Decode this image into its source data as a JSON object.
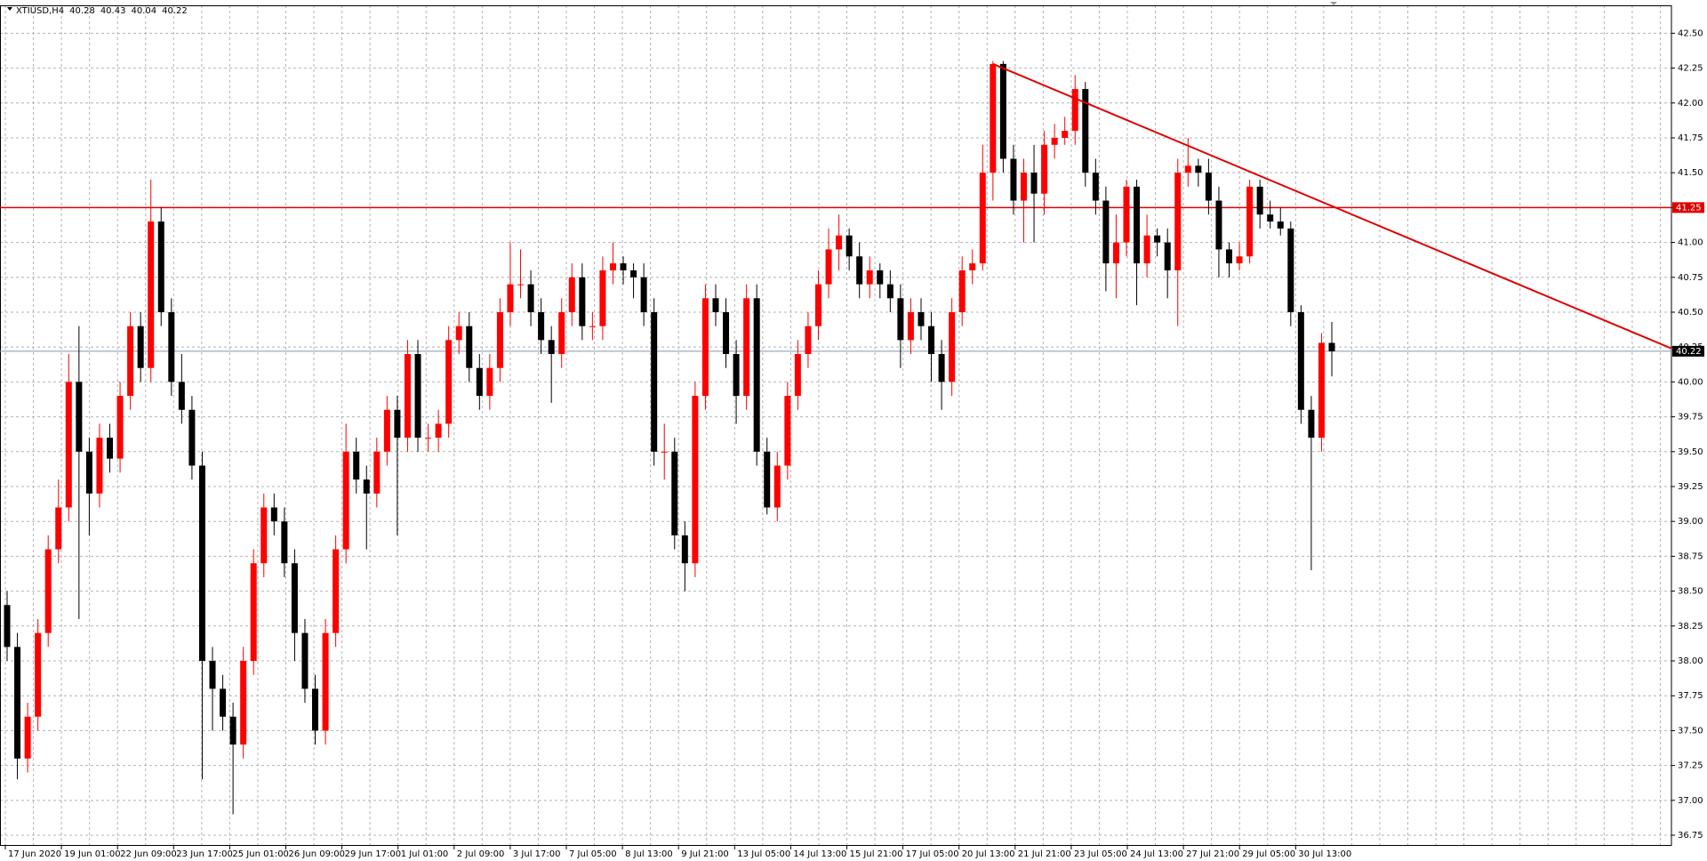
{
  "chart_data": {
    "type": "candlestick",
    "symbol": "XTIUSD,H4",
    "header_ohlc": [
      40.28,
      40.43,
      40.04,
      40.22
    ],
    "up_color": "#ff0000",
    "down_color": "#000000",
    "ylim": [
      36.68,
      42.7
    ],
    "yticks": [
      {
        "value": 36.75,
        "label": "36.75"
      },
      {
        "value": 37,
        "label": "37.00"
      },
      {
        "value": 37.25,
        "label": "37.25"
      },
      {
        "value": 37.5,
        "label": "37.50"
      },
      {
        "value": 37.75,
        "label": "37.75"
      },
      {
        "value": 38,
        "label": "38.00"
      },
      {
        "value": 38.25,
        "label": "38.25"
      },
      {
        "value": 38.5,
        "label": "38.50"
      },
      {
        "value": 38.75,
        "label": "38.75"
      },
      {
        "value": 39,
        "label": "39.00"
      },
      {
        "value": 39.25,
        "label": "39.25"
      },
      {
        "value": 39.5,
        "label": "39.50"
      },
      {
        "value": 39.75,
        "label": "39.75"
      },
      {
        "value": 40,
        "label": "40.00"
      },
      {
        "value": 40.25,
        "label": "40.25"
      },
      {
        "value": 40.5,
        "label": "40.50"
      },
      {
        "value": 40.75,
        "label": "40.75"
      },
      {
        "value": 41,
        "label": "41.00"
      },
      {
        "value": 41.25,
        "label": "41.25"
      },
      {
        "value": 41.5,
        "label": "41.50"
      },
      {
        "value": 41.75,
        "label": "41.75"
      },
      {
        "value": 42,
        "label": "42.00"
      },
      {
        "value": 42.25,
        "label": "42.25"
      },
      {
        "value": 42.5,
        "label": "42.50"
      }
    ],
    "grid": true,
    "x_labels": [
      "17 Jun 2020",
      "19 Jun 01:00",
      "22 Jun 09:00",
      "23 Jun 17:00",
      "25 Jun 01:00",
      "26 Jun 09:00",
      "29 Jun 17:00",
      "1 Jul 01:00",
      "2 Jul 09:00",
      "3 Jul 17:00",
      "7 Jul 05:00",
      "8 Jul 13:00",
      "9 Jul 21:00",
      "13 Jul 05:00",
      "14 Jul 13:00",
      "15 Jul 21:00",
      "17 Jul 05:00",
      "20 Jul 13:00",
      "21 Jul 21:00",
      "23 Jul 05:00",
      "24 Jul 13:00",
      "27 Jul 21:00",
      "29 Jul 05:00",
      "30 Jul 13:00"
    ],
    "levels": [
      {
        "value": 41.25,
        "color": "#e00000"
      }
    ],
    "current_price": 40.22,
    "current_color": "#8797ad",
    "trendline": {
      "start": 42.28,
      "end": 40.24,
      "color": "#e00000"
    },
    "candles": [
      [
        38.4,
        38.5,
        38.0,
        38.1
      ],
      [
        38.1,
        38.2,
        37.15,
        37.3
      ],
      [
        37.3,
        37.7,
        37.2,
        37.6
      ],
      [
        37.6,
        38.3,
        37.5,
        38.2
      ],
      [
        38.2,
        38.9,
        38.1,
        38.8
      ],
      [
        38.8,
        39.3,
        38.7,
        39.1
      ],
      [
        39.1,
        40.2,
        39.0,
        40.0
      ],
      [
        40.0,
        40.4,
        38.3,
        39.5
      ],
      [
        39.5,
        39.6,
        38.9,
        39.2
      ],
      [
        39.2,
        39.7,
        39.1,
        39.6
      ],
      [
        39.6,
        39.7,
        39.35,
        39.45
      ],
      [
        39.45,
        40.0,
        39.35,
        39.9
      ],
      [
        39.9,
        40.5,
        39.8,
        40.4
      ],
      [
        40.4,
        40.5,
        40.0,
        40.1
      ],
      [
        40.1,
        41.45,
        40.0,
        41.15
      ],
      [
        41.15,
        41.25,
        40.4,
        40.5
      ],
      [
        40.5,
        40.6,
        39.9,
        40.0
      ],
      [
        40.0,
        40.2,
        39.7,
        39.8
      ],
      [
        39.8,
        39.9,
        39.3,
        39.4
      ],
      [
        39.4,
        39.5,
        37.15,
        38.0
      ],
      [
        38.0,
        38.1,
        37.5,
        37.8
      ],
      [
        37.8,
        37.9,
        37.5,
        37.6
      ],
      [
        37.6,
        37.7,
        36.9,
        37.4
      ],
      [
        37.4,
        38.1,
        37.3,
        38.0
      ],
      [
        38.0,
        38.8,
        37.9,
        38.7
      ],
      [
        38.7,
        39.2,
        38.6,
        39.1
      ],
      [
        39.1,
        39.2,
        38.9,
        39.0
      ],
      [
        39.0,
        39.1,
        38.6,
        38.7
      ],
      [
        38.7,
        38.8,
        38.0,
        38.2
      ],
      [
        38.2,
        38.3,
        37.7,
        37.8
      ],
      [
        37.8,
        37.9,
        37.4,
        37.5
      ],
      [
        37.5,
        38.3,
        37.4,
        38.2
      ],
      [
        38.2,
        38.9,
        38.1,
        38.8
      ],
      [
        38.8,
        39.7,
        38.7,
        39.5
      ],
      [
        39.5,
        39.6,
        39.2,
        39.3
      ],
      [
        39.3,
        39.4,
        38.8,
        39.2
      ],
      [
        39.2,
        39.6,
        39.1,
        39.5
      ],
      [
        39.5,
        39.9,
        39.4,
        39.8
      ],
      [
        39.8,
        39.9,
        38.9,
        39.6
      ],
      [
        39.6,
        40.3,
        39.5,
        40.2
      ],
      [
        40.2,
        40.3,
        39.5,
        39.6
      ],
      [
        39.6,
        39.7,
        39.5,
        39.6
      ],
      [
        39.6,
        39.8,
        39.5,
        39.7
      ],
      [
        39.7,
        40.4,
        39.6,
        40.3
      ],
      [
        40.3,
        40.5,
        40.2,
        40.4
      ],
      [
        40.4,
        40.5,
        40.0,
        40.1
      ],
      [
        40.1,
        40.2,
        39.8,
        39.9
      ],
      [
        39.9,
        40.2,
        39.8,
        40.1
      ],
      [
        40.1,
        40.6,
        40.0,
        40.5
      ],
      [
        40.5,
        41.0,
        40.4,
        40.7
      ],
      [
        40.7,
        40.95,
        40.6,
        40.7
      ],
      [
        40.7,
        40.8,
        40.4,
        40.5
      ],
      [
        40.5,
        40.6,
        40.2,
        40.3
      ],
      [
        40.3,
        40.4,
        39.85,
        40.2
      ],
      [
        40.2,
        40.6,
        40.1,
        40.5
      ],
      [
        40.5,
        40.85,
        40.4,
        40.75
      ],
      [
        40.75,
        40.85,
        40.3,
        40.4
      ],
      [
        40.4,
        40.5,
        40.3,
        40.4
      ],
      [
        40.4,
        40.9,
        40.3,
        40.8
      ],
      [
        40.8,
        41.0,
        40.7,
        40.85
      ],
      [
        40.85,
        40.9,
        40.7,
        40.8
      ],
      [
        40.8,
        40.85,
        40.6,
        40.75
      ],
      [
        40.75,
        40.85,
        40.4,
        40.5
      ],
      [
        40.5,
        40.6,
        39.4,
        39.5
      ],
      [
        39.5,
        39.7,
        39.3,
        39.5
      ],
      [
        39.5,
        39.6,
        38.8,
        38.9
      ],
      [
        38.9,
        39.0,
        38.5,
        38.7
      ],
      [
        38.7,
        40.0,
        38.6,
        39.9
      ],
      [
        39.9,
        40.7,
        39.8,
        40.6
      ],
      [
        40.6,
        40.7,
        40.4,
        40.5
      ],
      [
        40.5,
        40.6,
        40.1,
        40.2
      ],
      [
        40.2,
        40.3,
        39.7,
        39.9
      ],
      [
        39.9,
        40.7,
        39.8,
        40.6
      ],
      [
        40.6,
        40.7,
        39.4,
        39.5
      ],
      [
        39.5,
        39.6,
        39.05,
        39.1
      ],
      [
        39.1,
        39.5,
        39.0,
        39.4
      ],
      [
        39.4,
        40.0,
        39.3,
        39.9
      ],
      [
        39.9,
        40.3,
        39.8,
        40.2
      ],
      [
        40.2,
        40.5,
        40.1,
        40.4
      ],
      [
        40.4,
        40.8,
        40.3,
        40.7
      ],
      [
        40.7,
        41.1,
        40.6,
        40.95
      ],
      [
        40.95,
        41.2,
        40.8,
        41.05
      ],
      [
        41.05,
        41.1,
        40.8,
        40.9
      ],
      [
        40.9,
        41.0,
        40.6,
        40.7
      ],
      [
        40.7,
        40.9,
        40.6,
        40.8
      ],
      [
        40.8,
        40.85,
        40.6,
        40.7
      ],
      [
        40.7,
        40.8,
        40.5,
        40.6
      ],
      [
        40.6,
        40.7,
        40.1,
        40.3
      ],
      [
        40.3,
        40.6,
        40.2,
        40.5
      ],
      [
        40.5,
        40.6,
        40.3,
        40.4
      ],
      [
        40.4,
        40.5,
        40.0,
        40.2
      ],
      [
        40.2,
        40.3,
        39.8,
        40.0
      ],
      [
        40.0,
        40.6,
        39.9,
        40.5
      ],
      [
        40.5,
        40.9,
        40.4,
        40.8
      ],
      [
        40.8,
        40.95,
        40.7,
        40.85
      ],
      [
        40.85,
        41.7,
        40.8,
        41.5
      ],
      [
        41.5,
        42.3,
        41.3,
        42.28
      ],
      [
        42.28,
        42.3,
        41.5,
        41.6
      ],
      [
        41.6,
        41.7,
        41.2,
        41.3
      ],
      [
        41.3,
        41.6,
        41.0,
        41.5
      ],
      [
        41.5,
        41.7,
        41.0,
        41.35
      ],
      [
        41.35,
        41.8,
        41.2,
        41.7
      ],
      [
        41.7,
        41.85,
        41.6,
        41.75
      ],
      [
        41.75,
        41.9,
        41.7,
        41.8
      ],
      [
        41.8,
        42.2,
        41.7,
        42.1
      ],
      [
        42.1,
        42.15,
        41.4,
        41.5
      ],
      [
        41.5,
        41.6,
        41.2,
        41.3
      ],
      [
        41.3,
        41.4,
        40.65,
        40.85
      ],
      [
        40.85,
        41.2,
        40.6,
        41.0
      ],
      [
        41.0,
        41.45,
        40.9,
        41.4
      ],
      [
        41.4,
        41.45,
        40.55,
        40.85
      ],
      [
        40.85,
        41.2,
        40.75,
        41.05
      ],
      [
        41.05,
        41.1,
        40.9,
        41.0
      ],
      [
        41.0,
        41.1,
        40.6,
        40.8
      ],
      [
        40.8,
        41.6,
        40.4,
        41.5
      ],
      [
        41.5,
        41.75,
        41.4,
        41.55
      ],
      [
        41.55,
        41.6,
        41.4,
        41.5
      ],
      [
        41.5,
        41.6,
        41.2,
        41.3
      ],
      [
        41.3,
        41.4,
        40.75,
        40.95
      ],
      [
        40.95,
        41.0,
        40.75,
        40.85
      ],
      [
        40.85,
        41.0,
        40.8,
        40.9
      ],
      [
        40.9,
        41.45,
        40.85,
        41.4
      ],
      [
        41.4,
        41.45,
        41.1,
        41.2
      ],
      [
        41.2,
        41.3,
        41.1,
        41.15
      ],
      [
        41.15,
        41.25,
        41.05,
        41.1
      ],
      [
        41.1,
        41.15,
        40.4,
        40.5
      ],
      [
        40.5,
        40.55,
        39.7,
        39.8
      ],
      [
        39.8,
        39.9,
        38.65,
        39.6
      ],
      [
        39.6,
        40.35,
        39.5,
        40.28
      ],
      [
        40.28,
        40.43,
        40.04,
        40.22
      ]
    ]
  }
}
